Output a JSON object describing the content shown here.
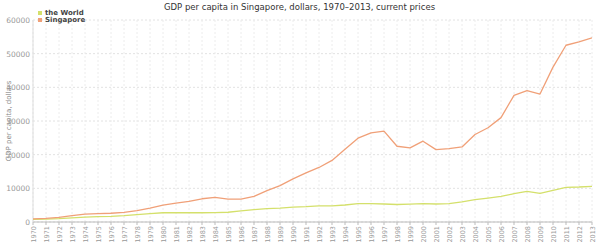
{
  "chart_data": {
    "type": "line",
    "title": "GDP per capita in Singapore, dollars, 1970–2013, current prices",
    "y_label": "GDP per capita, dollars",
    "categories": [
      "1970",
      "1971",
      "1972",
      "1973",
      "1974",
      "1975",
      "1976",
      "1977",
      "1978",
      "1979",
      "1980",
      "1981",
      "1982",
      "1983",
      "1984",
      "1985",
      "1986",
      "1987",
      "1988",
      "1989",
      "1990",
      "1991",
      "1992",
      "1993",
      "1994",
      "1995",
      "1996",
      "1997",
      "1998",
      "1999",
      "2000",
      "2001",
      "2002",
      "2003",
      "2004",
      "2005",
      "2006",
      "2007",
      "2008",
      "2009",
      "2010",
      "2011",
      "2012",
      "2013"
    ],
    "series": [
      {
        "name": "the World",
        "color": "#d4e06b",
        "values": [
          800,
          870,
          1000,
          1250,
          1450,
          1600,
          1700,
          1900,
          2200,
          2500,
          2750,
          2800,
          2750,
          2750,
          2800,
          2900,
          3300,
          3650,
          4000,
          4100,
          4400,
          4550,
          4800,
          4800,
          5050,
          5450,
          5450,
          5350,
          5200,
          5300,
          5450,
          5350,
          5450,
          6000,
          6650,
          7100,
          7600,
          8400,
          9100,
          8500,
          9400,
          10300,
          10400,
          10600
        ]
      },
      {
        "name": "Singapore",
        "color": "#f0a078",
        "values": [
          925,
          1070,
          1350,
          1900,
          2350,
          2500,
          2600,
          2850,
          3400,
          4100,
          5000,
          5600,
          6100,
          6900,
          7300,
          6800,
          6800,
          7600,
          9300,
          10800,
          12800,
          14600,
          16200,
          18300,
          21600,
          24900,
          26500,
          27000,
          22500,
          22000,
          24000,
          21500,
          21800,
          22300,
          26000,
          28000,
          31000,
          37600,
          39000,
          38000,
          46000,
          52500,
          53500,
          54700
        ]
      }
    ],
    "ylim": [
      0,
      60000
    ],
    "yticks": [
      0,
      10000,
      20000,
      30000,
      40000,
      50000,
      60000
    ],
    "grid": true,
    "legend": "top-left"
  }
}
